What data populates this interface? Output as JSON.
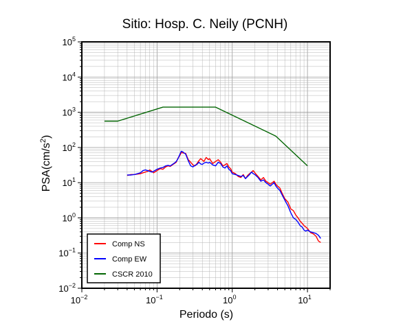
{
  "chart_data": {
    "type": "line",
    "title": "Sitio: Hosp. C. Neily (PCNH)",
    "xlabel": "Periodo (s)",
    "ylabel": "PSA(cm/s2)",
    "ylabel_parts": {
      "base": "PSA(cm/s",
      "exp": "2",
      "close": ")"
    },
    "x_scale": "log",
    "y_scale": "log",
    "xlim": [
      0.01,
      20
    ],
    "ylim": [
      0.01,
      100000
    ],
    "grid": true,
    "legend_position": "bottom-left",
    "x_ticks": [
      {
        "base": "10",
        "exp": "−2",
        "value": 0.01
      },
      {
        "base": "10",
        "exp": "−1",
        "value": 0.1
      },
      {
        "base": "10",
        "exp": "0",
        "value": 1
      },
      {
        "base": "10",
        "exp": "1",
        "value": 10
      }
    ],
    "y_ticks": [
      {
        "base": "10",
        "exp": "−2",
        "value": 0.01
      },
      {
        "base": "10",
        "exp": "−1",
        "value": 0.1
      },
      {
        "base": "10",
        "exp": "0",
        "value": 1
      },
      {
        "base": "10",
        "exp": "1",
        "value": 10
      },
      {
        "base": "10",
        "exp": "2",
        "value": 100
      },
      {
        "base": "10",
        "exp": "3",
        "value": 1000
      },
      {
        "base": "10",
        "exp": "4",
        "value": 10000
      },
      {
        "base": "10",
        "exp": "5",
        "value": 100000
      }
    ],
    "series": [
      {
        "name": "Comp NS",
        "color": "#ff0000",
        "x": [
          0.04,
          0.045,
          0.05,
          0.055,
          0.06,
          0.065,
          0.07,
          0.075,
          0.08,
          0.085,
          0.09,
          0.1,
          0.11,
          0.12,
          0.13,
          0.14,
          0.15,
          0.16,
          0.17,
          0.18,
          0.19,
          0.2,
          0.21,
          0.22,
          0.24,
          0.26,
          0.28,
          0.3,
          0.32,
          0.34,
          0.36,
          0.38,
          0.4,
          0.42,
          0.45,
          0.48,
          0.5,
          0.55,
          0.6,
          0.65,
          0.7,
          0.75,
          0.8,
          0.85,
          0.9,
          0.95,
          1.0,
          1.1,
          1.2,
          1.3,
          1.4,
          1.5,
          1.6,
          1.7,
          1.8,
          1.9,
          2.0,
          2.2,
          2.4,
          2.6,
          2.8,
          3.0,
          3.2,
          3.4,
          3.6,
          3.8,
          4.0,
          4.3,
          4.6,
          5.0,
          5.5,
          6.0,
          6.5,
          7.0,
          7.5,
          8.0,
          8.5,
          9.0,
          9.5,
          10.0,
          11.0,
          12.0,
          13.0,
          14.0,
          15.0
        ],
        "y": [
          16,
          17,
          17,
          17.5,
          18,
          19,
          20,
          21,
          23,
          21,
          19,
          22,
          25,
          24,
          28,
          30,
          29,
          32,
          35,
          38,
          50,
          58,
          72,
          70,
          68,
          45,
          38,
          32,
          30,
          35,
          42,
          48,
          44,
          40,
          52,
          45,
          48,
          35,
          40,
          45,
          38,
          30,
          32,
          35,
          28,
          25,
          20,
          18,
          15,
          14,
          17,
          13,
          16,
          18,
          20,
          22,
          19,
          15,
          12,
          14,
          11,
          10,
          9,
          10,
          11,
          9,
          8,
          7,
          5,
          3.5,
          2.8,
          1.8,
          1.6,
          1.2,
          1.0,
          0.8,
          0.7,
          0.6,
          0.55,
          0.5,
          0.38,
          0.35,
          0.3,
          0.22,
          0.2
        ]
      },
      {
        "name": "Comp EW",
        "color": "#0000ff",
        "x": [
          0.04,
          0.045,
          0.05,
          0.055,
          0.06,
          0.065,
          0.07,
          0.075,
          0.08,
          0.085,
          0.09,
          0.1,
          0.11,
          0.12,
          0.13,
          0.14,
          0.15,
          0.16,
          0.17,
          0.18,
          0.19,
          0.2,
          0.21,
          0.22,
          0.24,
          0.26,
          0.28,
          0.3,
          0.32,
          0.34,
          0.36,
          0.38,
          0.4,
          0.42,
          0.45,
          0.48,
          0.5,
          0.55,
          0.6,
          0.65,
          0.7,
          0.75,
          0.8,
          0.85,
          0.9,
          0.95,
          1.0,
          1.1,
          1.2,
          1.3,
          1.4,
          1.5,
          1.6,
          1.7,
          1.8,
          1.9,
          2.0,
          2.2,
          2.4,
          2.6,
          2.8,
          3.0,
          3.2,
          3.4,
          3.6,
          3.8,
          4.0,
          4.3,
          4.6,
          5.0,
          5.5,
          6.0,
          6.5,
          7.0,
          7.5,
          8.0,
          8.5,
          9.0,
          9.5,
          10.0,
          11.0,
          12.0,
          13.0,
          14.0,
          15.0
        ],
        "y": [
          16.5,
          16.5,
          17,
          18,
          19,
          22,
          23,
          22,
          21,
          20,
          21,
          24,
          26,
          27,
          30,
          31,
          30,
          33,
          36,
          40,
          48,
          62,
          78,
          75,
          65,
          42,
          30,
          28,
          31,
          33,
          38,
          34,
          33,
          36,
          38,
          36,
          38,
          32,
          30,
          38,
          35,
          28,
          26,
          30,
          24,
          22,
          18,
          17,
          16,
          15,
          16,
          13,
          15,
          17,
          20,
          18,
          17,
          14,
          11,
          12,
          10,
          9,
          8,
          9,
          10,
          8,
          7,
          6,
          4.5,
          3.2,
          2.2,
          1.4,
          1.0,
          0.9,
          0.75,
          0.6,
          0.55,
          0.45,
          0.42,
          0.45,
          0.4,
          0.38,
          0.36,
          0.32,
          0.26
        ]
      },
      {
        "name": "CSCR 2010",
        "color": "#006400",
        "x": [
          0.02,
          0.03,
          0.12,
          0.6,
          3.8,
          10.0
        ],
        "y": [
          560,
          560,
          1400,
          1400,
          210,
          30
        ]
      }
    ]
  }
}
